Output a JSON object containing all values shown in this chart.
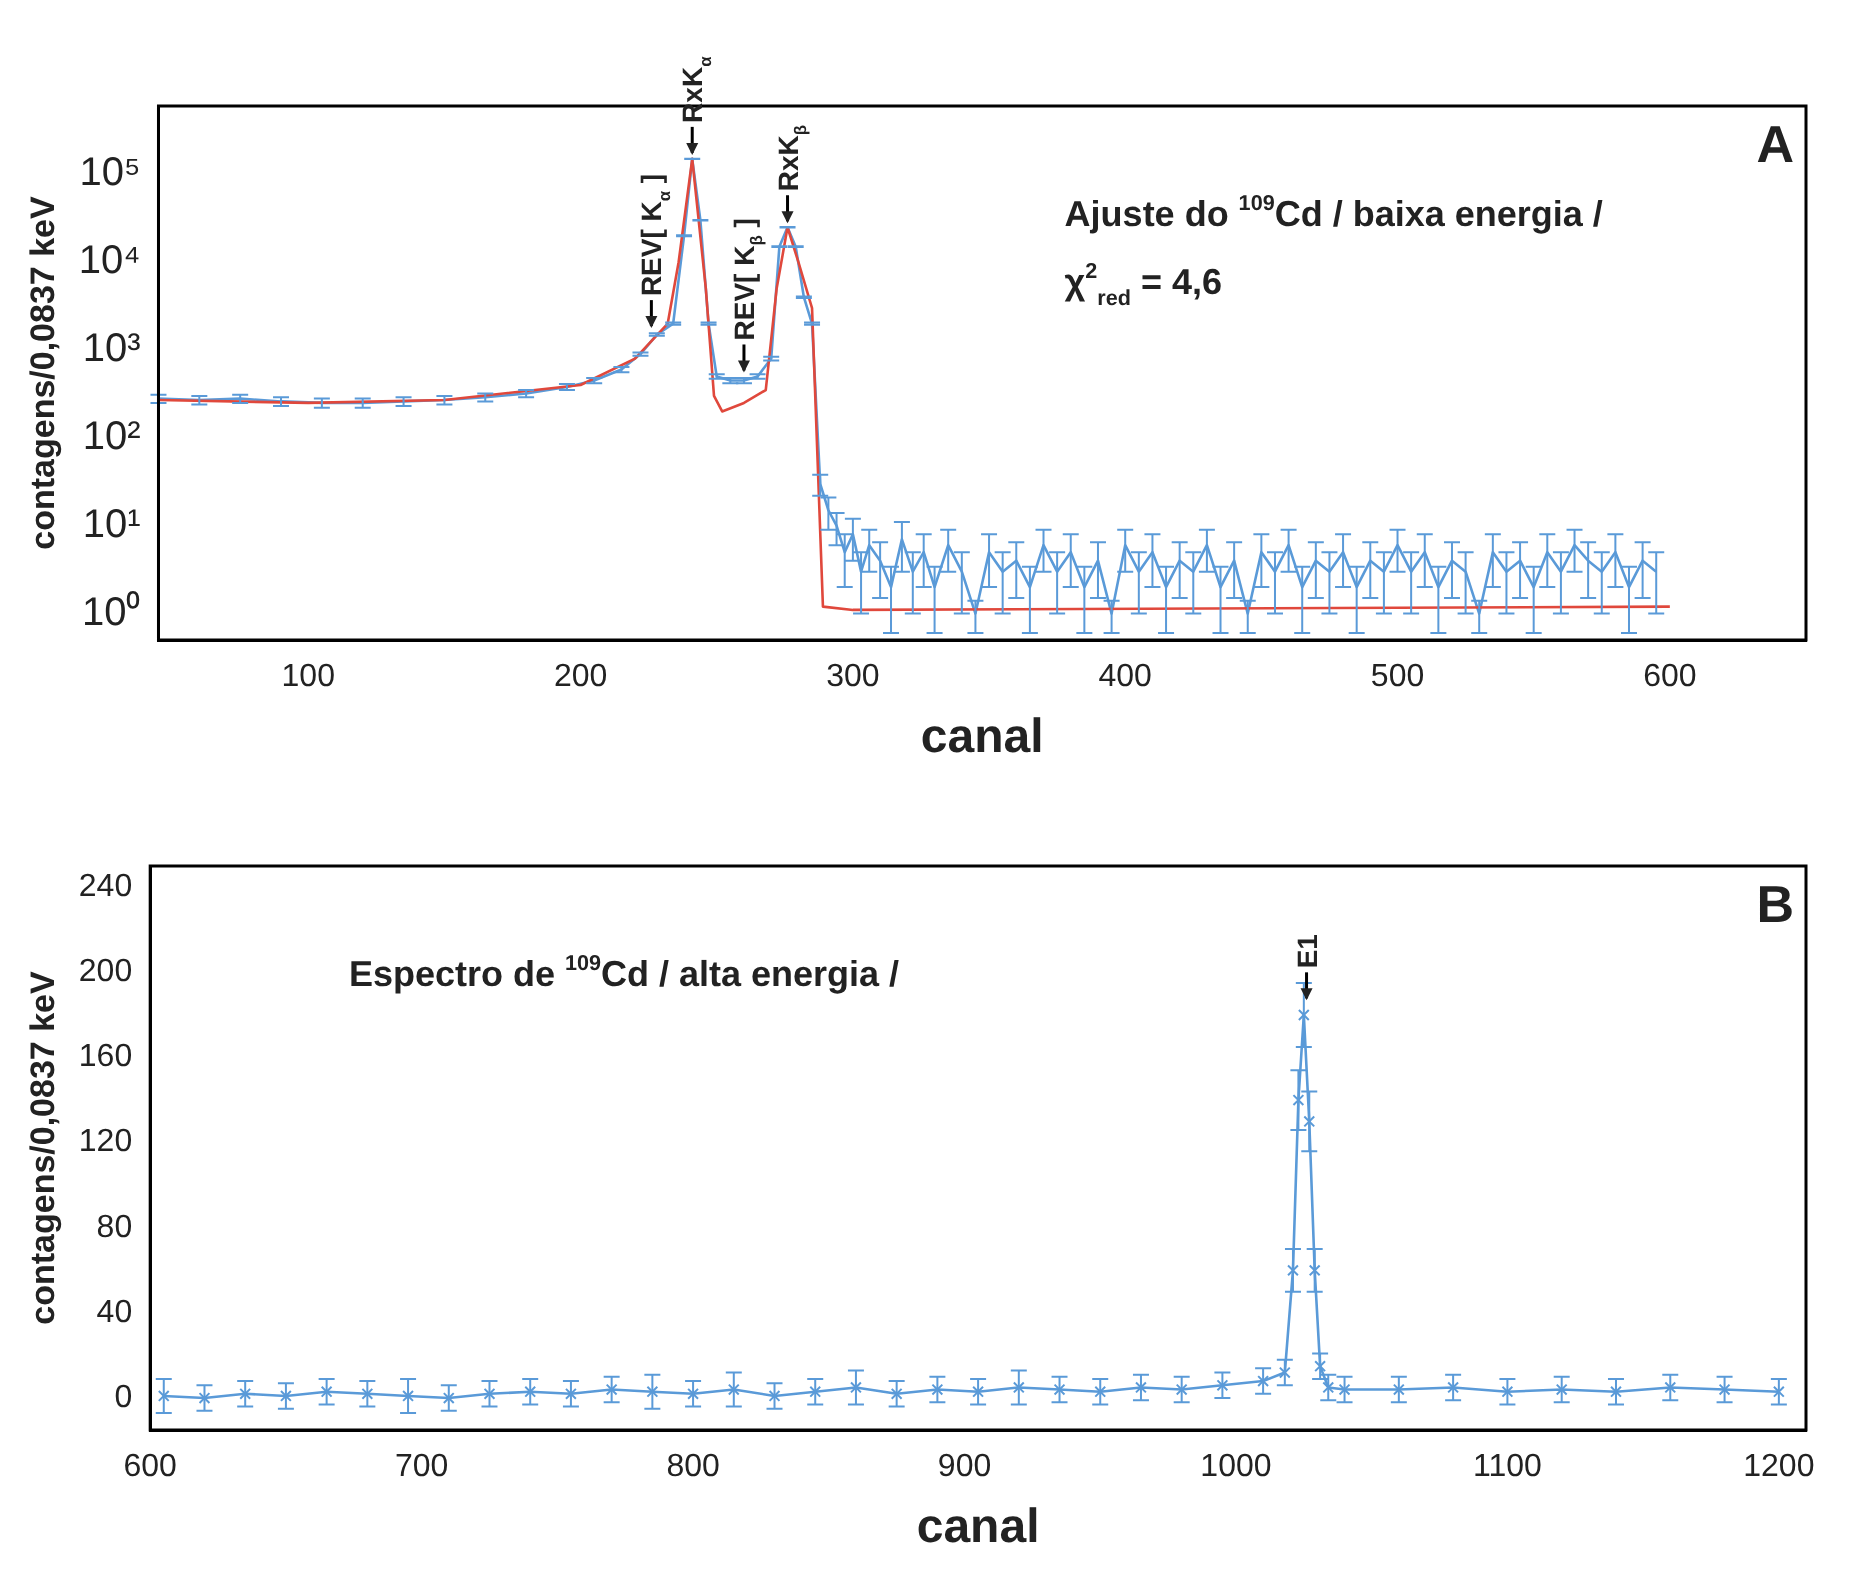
{
  "chart_data": [
    {
      "type": "line",
      "xlabel": "canal",
      "ylabel": "contagens/0,0837 keV",
      "log": "y",
      "grid": false,
      "legend": false,
      "marker": "none",
      "line_style": "solid",
      "xlim": [
        45,
        650
      ],
      "xticks": [
        100,
        200,
        300,
        400,
        500,
        600
      ],
      "ylim": [
        0.5,
        600000
      ],
      "yticks": [
        {
          "value": 1,
          "label": "10⁰"
        },
        {
          "value": 10,
          "label": "10¹"
        },
        {
          "value": 100,
          "label": "10²"
        },
        {
          "value": 1000,
          "label": "10³"
        },
        {
          "value": 10000,
          "label": "10⁴"
        },
        {
          "value": 100000,
          "label": "10⁵"
        }
      ],
      "series": [
        {
          "color": "#5a9ad8",
          "x": [
            45,
            60,
            75,
            90,
            105,
            120,
            135,
            150,
            165,
            180,
            195,
            205,
            215,
            222,
            228,
            234,
            238,
            241,
            244,
            247,
            250,
            255,
            260,
            265,
            270,
            273,
            276,
            279,
            282,
            285,
            288,
            291,
            294,
            297,
            300,
            303,
            306,
            310,
            314,
            318,
            322,
            326,
            330,
            335,
            340,
            345,
            350,
            355,
            360,
            365,
            370,
            375,
            380,
            385,
            390,
            395,
            400,
            405,
            410,
            415,
            420,
            425,
            430,
            435,
            440,
            445,
            450,
            455,
            460,
            465,
            470,
            475,
            480,
            485,
            490,
            495,
            500,
            505,
            510,
            515,
            520,
            525,
            530,
            535,
            540,
            545,
            550,
            555,
            560,
            565,
            570,
            575,
            580,
            585,
            590,
            595
          ],
          "values": [
            280,
            270,
            280,
            260,
            250,
            250,
            260,
            270,
            290,
            320,
            380,
            450,
            600,
            900,
            1500,
            2000,
            20000,
            150000,
            30000,
            2000,
            500,
            450,
            450,
            500,
            800,
            15000,
            25000,
            15000,
            4000,
            2000,
            30,
            15,
            10,
            5,
            8,
            3,
            6,
            4,
            2,
            7,
            3,
            5,
            2,
            6,
            3,
            1,
            5,
            3,
            4,
            2,
            6,
            3,
            5,
            2,
            4,
            1,
            6,
            3,
            5,
            2,
            4,
            3,
            6,
            2,
            4,
            1,
            5,
            3,
            6,
            2,
            4,
            3,
            5,
            2,
            4,
            3,
            6,
            3,
            5,
            2,
            4,
            3,
            1,
            5,
            3,
            4,
            2,
            5,
            3,
            6,
            4,
            3,
            5,
            2,
            4,
            3
          ],
          "errors": [
            30,
            30,
            30,
            30,
            30,
            30,
            30,
            30,
            30,
            30,
            30,
            30,
            40,
            40,
            50,
            60,
            200,
            500,
            250,
            60,
            30,
            30,
            30,
            30,
            40,
            150,
            200,
            150,
            80,
            60,
            8,
            6,
            4,
            3,
            4,
            2,
            3,
            2.5,
            1.4,
            4,
            2,
            3,
            1.4,
            3,
            2,
            0.4,
            3,
            2,
            2.5,
            1.4,
            3,
            2,
            3,
            1.4,
            2.5,
            0.4,
            3,
            2,
            3,
            1.4,
            2.5,
            2,
            3,
            1.4,
            2.5,
            0.4,
            3,
            2,
            3,
            1.4,
            2.5,
            2,
            3,
            1.4,
            2.5,
            2,
            3,
            2,
            3,
            1.4,
            2.5,
            2,
            0.4,
            3,
            2,
            2.5,
            1.4,
            3,
            2,
            3,
            2.5,
            2,
            3,
            1.4,
            2.5,
            2
          ]
        },
        {
          "color": "#e0483c",
          "x": [
            45,
            100,
            150,
            200,
            220,
            232,
            236,
            241,
            246,
            249,
            252,
            260,
            268,
            272,
            276,
            280,
            285,
            289,
            300,
            600
          ],
          "values": [
            270,
            250,
            270,
            400,
            800,
            2000,
            10000,
            150000,
            5000,
            300,
            200,
            250,
            350,
            5000,
            25000,
            10000,
            3000,
            1.2,
            1.1,
            1.2
          ]
        }
      ],
      "annotations": [
        "A",
        "Ajuste do $^{109}$Cd / baixa energia /",
        "χ$^{2}$$_{red}$ = 4,6",
        {
          "text": "RxK$_{α}$",
          "x": 241,
          "y": 150000
        },
        {
          "text": "REV[ K$_{α}$ ]",
          "x": 226,
          "y": 1600
        },
        {
          "text": "REV[ K$_{β}$ ]",
          "x": 260,
          "y": 500
        },
        {
          "text": "RxK$_{β}$",
          "x": 276,
          "y": 25000
        }
      ]
    },
    {
      "type": "line",
      "xlabel": "canal",
      "ylabel": "contagens/0,0837 keV",
      "grid": false,
      "legend": false,
      "line_style": "solid",
      "xlim": [
        600,
        1210
      ],
      "marker": "cross",
      "xticks": [
        600,
        700,
        800,
        900,
        1000,
        1100,
        1200
      ],
      "ylim": [
        -15,
        250
      ],
      "yticks": [
        0,
        40,
        80,
        120,
        160,
        200,
        240
      ],
      "series": [
        {
          "color": "#5a9ad8",
          "x": [
            605,
            620,
            635,
            650,
            665,
            680,
            695,
            710,
            725,
            740,
            755,
            770,
            785,
            800,
            815,
            830,
            845,
            860,
            875,
            890,
            905,
            920,
            935,
            950,
            965,
            980,
            995,
            1010,
            1018,
            1021,
            1023,
            1025,
            1027,
            1029,
            1031,
            1034,
            1040,
            1060,
            1080,
            1100,
            1120,
            1140,
            1160,
            1180,
            1200
          ],
          "values": [
            1,
            0,
            2,
            1,
            3,
            2,
            1,
            0,
            2,
            3,
            2,
            4,
            3,
            2,
            4,
            1,
            3,
            5,
            2,
            4,
            3,
            5,
            4,
            3,
            5,
            4,
            6,
            8,
            12,
            60,
            140,
            180,
            130,
            60,
            15,
            5,
            4,
            4,
            5,
            3,
            4,
            3,
            5,
            4,
            3
          ],
          "errors": [
            8,
            6,
            6,
            6,
            6,
            6,
            8,
            6,
            6,
            6,
            6,
            6,
            8,
            6,
            8,
            6,
            6,
            8,
            6,
            6,
            6,
            8,
            6,
            6,
            6,
            6,
            6,
            6,
            6,
            10,
            14,
            15,
            14,
            10,
            6,
            6,
            6,
            6,
            6,
            6,
            6,
            6,
            6,
            6,
            6
          ]
        }
      ],
      "annotations": [
        "B",
        "Espectro de $^{109}$Cd / alta energia /",
        {
          "text": "E1",
          "x": 1026,
          "y": 185
        }
      ]
    }
  ]
}
